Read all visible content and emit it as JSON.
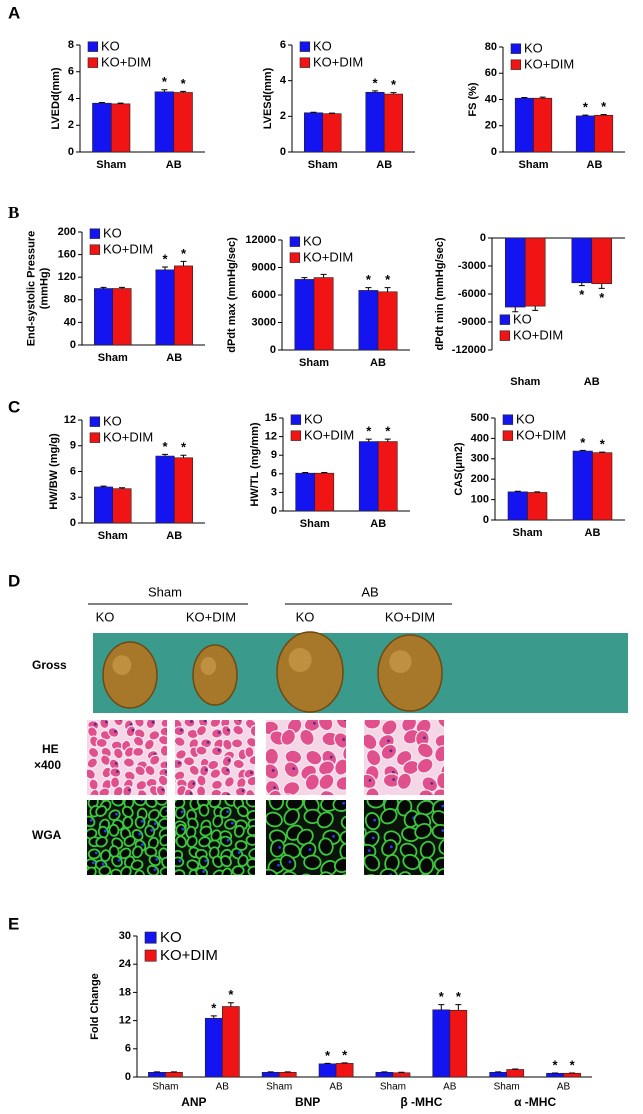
{
  "panel_labels": [
    "A",
    "B",
    "C",
    "D",
    "E"
  ],
  "chart_data": [
    {
      "type": "bar",
      "ylabel": "LVEDd(mm)",
      "categories": [
        "Sham",
        "AB"
      ],
      "series": [
        {
          "name": "KO",
          "color": "#1414f0",
          "values": [
            3.65,
            4.5
          ],
          "errors": [
            0.05,
            0.15
          ],
          "labels": [
            null,
            "*"
          ]
        },
        {
          "name": "KO+DIM",
          "color": "#f01414",
          "values": [
            3.6,
            4.45
          ],
          "errors": [
            0.05,
            0.08
          ],
          "labels": [
            null,
            "*"
          ]
        }
      ],
      "ylim": [
        0,
        8
      ],
      "yticks": [
        0,
        2,
        4,
        6,
        8
      ],
      "legend": "upper left"
    },
    {
      "type": "bar",
      "ylabel": "LVESd(mm)",
      "categories": [
        "Sham",
        "AB"
      ],
      "series": [
        {
          "name": "KO",
          "color": "#1414f0",
          "values": [
            2.2,
            3.35
          ],
          "errors": [
            0.03,
            0.08
          ],
          "labels": [
            null,
            "*"
          ]
        },
        {
          "name": "KO+DIM",
          "color": "#f01414",
          "values": [
            2.15,
            3.25
          ],
          "errors": [
            0.03,
            0.08
          ],
          "labels": [
            null,
            "*"
          ]
        }
      ],
      "ylim": [
        0,
        6
      ],
      "yticks": [
        0,
        2,
        4,
        6
      ],
      "legend": "upper left"
    },
    {
      "type": "bar",
      "ylabel": "FS (%)",
      "categories": [
        "Sham",
        "AB"
      ],
      "series": [
        {
          "name": "KO",
          "color": "#1414f0",
          "values": [
            41,
            27.5
          ],
          "errors": [
            0.5,
            0.6
          ],
          "labels": [
            null,
            "*"
          ]
        },
        {
          "name": "KO+DIM",
          "color": "#f01414",
          "values": [
            41,
            28
          ],
          "errors": [
            0.8,
            0.6
          ],
          "labels": [
            null,
            "*"
          ]
        }
      ],
      "ylim": [
        0,
        80
      ],
      "yticks": [
        0,
        20,
        40,
        60,
        80
      ],
      "legend": "upper left"
    },
    {
      "type": "bar",
      "ylabel": [
        "End-systolic Pressure",
        "(mmHg)"
      ],
      "categories": [
        "Sham",
        "AB"
      ],
      "series": [
        {
          "name": "KO",
          "color": "#1414f0",
          "values": [
            100,
            133
          ],
          "errors": [
            2,
            5
          ],
          "labels": [
            null,
            "*"
          ]
        },
        {
          "name": "KO+DIM",
          "color": "#f01414",
          "values": [
            100,
            140
          ],
          "errors": [
            2,
            8
          ],
          "labels": [
            null,
            "*"
          ]
        }
      ],
      "ylim": [
        0,
        200
      ],
      "yticks": [
        0,
        40,
        80,
        120,
        160,
        200
      ],
      "legend": "upper left"
    },
    {
      "type": "bar",
      "ylabel": "dPdt max (mmHg/sec)",
      "categories": [
        "Sham",
        "AB"
      ],
      "series": [
        {
          "name": "KO",
          "color": "#1414f0",
          "values": [
            7700,
            6500
          ],
          "errors": [
            200,
            300
          ],
          "labels": [
            null,
            "*"
          ]
        },
        {
          "name": "KO+DIM",
          "color": "#f01414",
          "values": [
            7900,
            6350
          ],
          "errors": [
            350,
            450
          ],
          "labels": [
            null,
            "*"
          ]
        }
      ],
      "ylim": [
        0,
        12000
      ],
      "yticks": [
        0,
        3000,
        6000,
        9000,
        12000
      ],
      "legend": "upper left"
    },
    {
      "type": "bar",
      "ylabel": "dPdt min (mmHg/sec)",
      "categories": [
        "Sham",
        "AB"
      ],
      "series": [
        {
          "name": "KO",
          "color": "#1414f0",
          "values": [
            -7400,
            -4800
          ],
          "errors": [
            500,
            300
          ],
          "labels": [
            null,
            "*"
          ]
        },
        {
          "name": "KO+DIM",
          "color": "#f01414",
          "values": [
            -7300,
            -4900
          ],
          "errors": [
            450,
            500
          ],
          "labels": [
            null,
            "*"
          ]
        }
      ],
      "ylim": [
        -12000,
        0
      ],
      "yticks": [
        0,
        -3000,
        -6000,
        -9000,
        -12000
      ],
      "legend": "lower left"
    },
    {
      "type": "bar",
      "ylabel": "HW/BW (mg/g)",
      "categories": [
        "Sham",
        "AB"
      ],
      "series": [
        {
          "name": "KO",
          "color": "#1414f0",
          "values": [
            4.2,
            7.8
          ],
          "errors": [
            0.1,
            0.2
          ],
          "labels": [
            null,
            "*"
          ]
        },
        {
          "name": "KO+DIM",
          "color": "#f01414",
          "values": [
            4.0,
            7.6
          ],
          "errors": [
            0.1,
            0.3
          ],
          "labels": [
            null,
            "*"
          ]
        }
      ],
      "ylim": [
        0,
        12
      ],
      "yticks": [
        0,
        3,
        6,
        9,
        12
      ],
      "legend": "upper left"
    },
    {
      "type": "bar",
      "ylabel": "HW/TL (mg/mm)",
      "categories": [
        "Sham",
        "AB"
      ],
      "series": [
        {
          "name": "KO",
          "color": "#1414f0",
          "values": [
            6.1,
            11.2
          ],
          "errors": [
            0.1,
            0.4
          ],
          "labels": [
            null,
            "*"
          ]
        },
        {
          "name": "KO+DIM",
          "color": "#f01414",
          "values": [
            6.1,
            11.2
          ],
          "errors": [
            0.1,
            0.4
          ],
          "labels": [
            null,
            "*"
          ]
        }
      ],
      "ylim": [
        0,
        15
      ],
      "yticks": [
        0,
        3,
        6,
        9,
        12,
        15
      ],
      "legend": "upper left"
    },
    {
      "type": "bar",
      "ylabel": "CAS(μm2)",
      "categories": [
        "Sham",
        "AB"
      ],
      "series": [
        {
          "name": "KO",
          "color": "#1414f0",
          "values": [
            138,
            338
          ],
          "errors": [
            3,
            3
          ],
          "labels": [
            null,
            "*"
          ]
        },
        {
          "name": "KO+DIM",
          "color": "#f01414",
          "values": [
            135,
            330
          ],
          "errors": [
            3,
            3
          ],
          "labels": [
            null,
            "*"
          ]
        }
      ],
      "ylim": [
        0,
        500
      ],
      "yticks": [
        0,
        100,
        200,
        300,
        400,
        500
      ],
      "legend": "upper left"
    },
    {
      "type": "bar",
      "ylabel": "Fold Change",
      "categories": [
        "Sham",
        "AB",
        "Sham",
        "AB",
        "Sham",
        "AB",
        "Sham",
        "AB"
      ],
      "groups": [
        "ANP",
        "BNP",
        "β -MHC",
        "α -MHC"
      ],
      "series": [
        {
          "name": "KO",
          "color": "#1414f0",
          "values": [
            1,
            12.5,
            1,
            2.8,
            1,
            14.3,
            1,
            0.8
          ],
          "errors": [
            0.1,
            0.5,
            0.1,
            0.1,
            0.1,
            1.1,
            0.1,
            0.05
          ],
          "labels": [
            null,
            "*",
            null,
            "*",
            null,
            "*",
            null,
            "*"
          ]
        },
        {
          "name": "KO+DIM",
          "color": "#f01414",
          "values": [
            1,
            15,
            1,
            2.9,
            0.9,
            14.2,
            1.6,
            0.8
          ],
          "errors": [
            0.1,
            0.8,
            0.1,
            0.1,
            0.1,
            1.2,
            0.1,
            0.05
          ],
          "labels": [
            null,
            "*",
            null,
            "*",
            null,
            "*",
            null,
            "*"
          ]
        }
      ],
      "ylim": [
        0,
        30
      ],
      "yticks": [
        0,
        6,
        12,
        18,
        24,
        30
      ],
      "legend": "upper left"
    }
  ],
  "histology": {
    "groups": [
      "Sham",
      "AB"
    ],
    "columns": [
      "KO",
      "KO+DIM",
      "KO",
      "KO+DIM"
    ],
    "rows": [
      {
        "label": "Gross"
      },
      {
        "label": "HE",
        "sublabel": "×400"
      },
      {
        "label": "WGA"
      }
    ]
  }
}
